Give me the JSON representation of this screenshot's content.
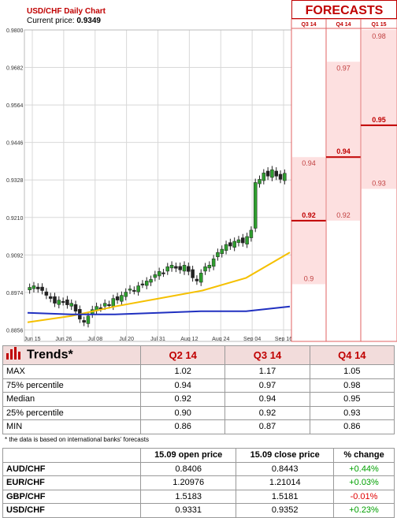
{
  "header": {
    "title": "USD/CHF Daily Chart",
    "current_price_label": "Current price:",
    "current_price": "0.9349",
    "forecasts_label": "FORECASTS"
  },
  "chart_data": {
    "type": "candlestick",
    "title": "USD/CHF Daily Chart",
    "y_ticks": [
      "0.9800",
      "0.9682",
      "0.9564",
      "0.9446",
      "0.9328",
      "0.9210",
      "0.9092",
      "0.8974",
      "0.8856"
    ],
    "ylim": [
      0.882,
      0.98
    ],
    "x_ticks": [
      "Jun 15",
      "Jun 26",
      "Jul 08",
      "Jul 20",
      "Jul 31",
      "Aug 12",
      "Aug 24",
      "Sep 04",
      "Sep 16"
    ],
    "closes": [
      0.899,
      0.8995,
      0.8985,
      0.898,
      0.8965,
      0.8955,
      0.894,
      0.895,
      0.8945,
      0.8935,
      0.894,
      0.8915,
      0.889,
      0.888,
      0.89,
      0.892,
      0.893,
      0.8925,
      0.894,
      0.8935,
      0.8955,
      0.895,
      0.8965,
      0.8975,
      0.8985,
      0.898,
      0.8995,
      0.9,
      0.901,
      0.9015,
      0.903,
      0.904,
      0.9035,
      0.9055,
      0.906,
      0.905,
      0.9045,
      0.906,
      0.904,
      0.902,
      0.901,
      0.9035,
      0.9055,
      0.906,
      0.908,
      0.91,
      0.911,
      0.9125,
      0.912,
      0.9135,
      0.914,
      0.913,
      0.915,
      0.917,
      0.932,
      0.933,
      0.935,
      0.934,
      0.936,
      0.934,
      0.933,
      0.9349
    ],
    "series": [
      {
        "name": "",
        "color": "#f5c000",
        "points": [
          0.888,
          0.89,
          0.893,
          0.8955,
          0.898,
          0.902,
          0.91
        ]
      },
      {
        "name": "",
        "color": "#2030c0",
        "points": [
          0.891,
          0.8905,
          0.8905,
          0.891,
          0.8915,
          0.8915,
          0.893
        ]
      }
    ]
  },
  "forecasts": {
    "columns": [
      "Q3 14",
      "Q4 14",
      "Q1 15"
    ],
    "q3": {
      "high": "0.94",
      "median": "0.92",
      "low": "0.9"
    },
    "q4": {
      "high": "0.97",
      "median": "0.94",
      "low": "0.92"
    },
    "q1": {
      "high": "0.98",
      "median": "0.95",
      "low": "0.93"
    }
  },
  "trends": {
    "title": "Trends*",
    "columns": [
      "Q2 14",
      "Q3 14",
      "Q4 14"
    ],
    "rows": [
      {
        "label": "MAX",
        "values": [
          "1.02",
          "1.17",
          "1.05"
        ]
      },
      {
        "label": "75% percentile",
        "values": [
          "0.94",
          "0.97",
          "0.98"
        ]
      },
      {
        "label": "Median",
        "values": [
          "0.92",
          "0.94",
          "0.95"
        ]
      },
      {
        "label": "25% percentile",
        "values": [
          "0.90",
          "0.92",
          "0.93"
        ]
      },
      {
        "label": "MIN",
        "values": [
          "0.86",
          "0.87",
          "0.86"
        ]
      }
    ],
    "note": "* the data is based on international banks' forecasts"
  },
  "fx": {
    "columns": [
      "15.09 open price",
      "15.09 close price",
      "% change"
    ],
    "rows": [
      {
        "pair": "AUD/CHF",
        "open": "0.8406",
        "close": "0.8443",
        "change": "+0.44%",
        "dir": "pos"
      },
      {
        "pair": "EUR/CHF",
        "open": "1.20976",
        "close": "1.21014",
        "change": "+0.03%",
        "dir": "pos"
      },
      {
        "pair": "GBP/CHF",
        "open": "1.5183",
        "close": "1.5181",
        "change": "-0.01%",
        "dir": "neg"
      },
      {
        "pair": "USD/CHF",
        "open": "0.9331",
        "close": "0.9352",
        "change": "+0.23%",
        "dir": "pos"
      }
    ]
  }
}
